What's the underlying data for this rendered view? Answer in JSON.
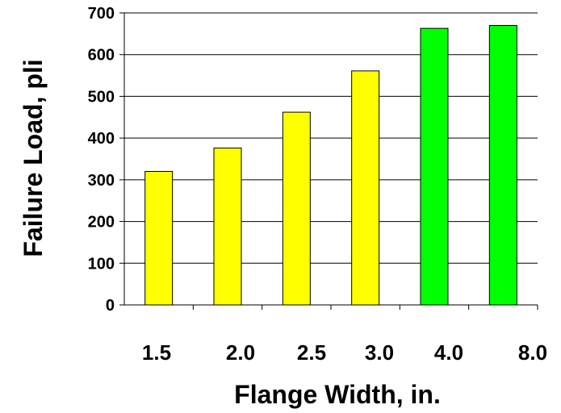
{
  "chart_data": {
    "type": "bar",
    "title": "",
    "xlabel": "Flange Width, in.",
    "ylabel": "Failure Load, pli",
    "categories": [
      "1.5",
      "2.0",
      "2.5",
      "3.0",
      "4.0",
      "8.0"
    ],
    "values": [
      320,
      376,
      462,
      561,
      663,
      670
    ],
    "bar_colors": [
      "#ffff00",
      "#ffff00",
      "#ffff00",
      "#ffff00",
      "#00ff00",
      "#00ff00"
    ],
    "ylim": [
      0,
      700
    ],
    "yticks": [
      0,
      100,
      200,
      300,
      400,
      500,
      600,
      700
    ],
    "grid": true,
    "legend": "none"
  }
}
